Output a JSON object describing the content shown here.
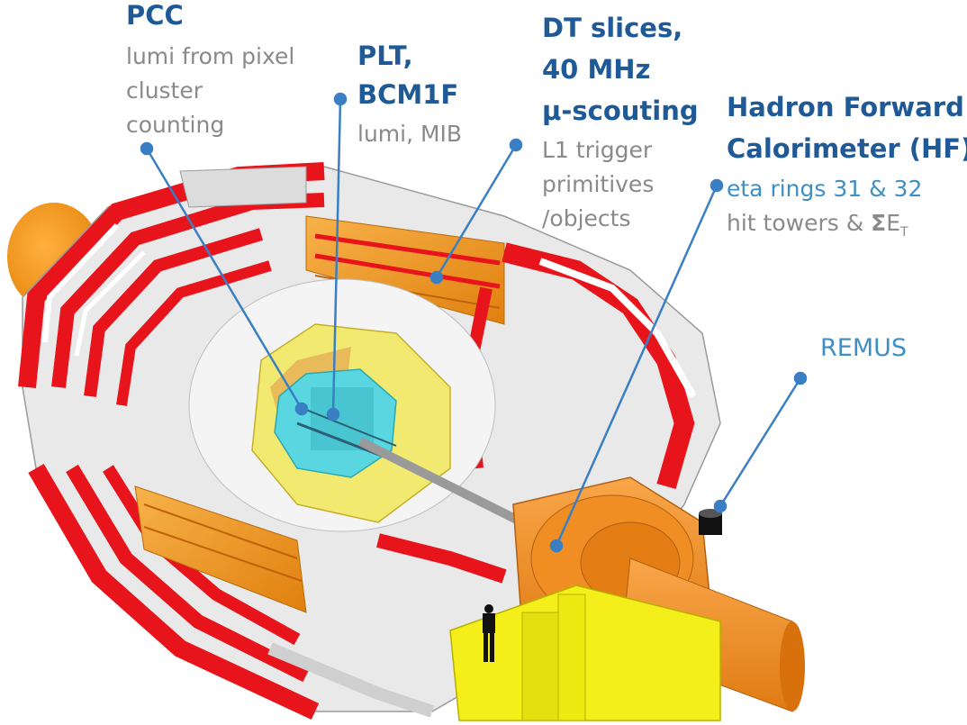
{
  "labels": {
    "pcc": {
      "title": "PCC",
      "lines": [
        "lumi from pixel",
        "cluster",
        "counting"
      ]
    },
    "plt": {
      "title_lines": [
        "PLT,",
        "BCM1F"
      ],
      "lines": [
        "lumi, MIB"
      ]
    },
    "dt": {
      "title_lines": [
        "DT slices,",
        "40 MHz",
        "μ-scouting"
      ],
      "lines": [
        "L1 trigger",
        "primitives",
        "/objects"
      ]
    },
    "hf": {
      "title_lines": [
        "Hadron Forward",
        "Calorimeter (HF)"
      ],
      "line_blue": "eta rings 31 & 32",
      "line_gray": "hit towers & ",
      "sigma": "Σ",
      "e": "E",
      "t": "T"
    },
    "remus": {
      "title": "REMUS"
    }
  },
  "colors": {
    "title": "#1f5a96",
    "subtitle": "#8a8a8a",
    "accent": "#3f8fc4",
    "muon_red": "#e8141c",
    "muon_orange": "#f29a1c",
    "calorimeter_yellow": "#f2ea70",
    "tracker_cyan": "#5ad6e0",
    "support_yellow": "#f4ee1a"
  }
}
